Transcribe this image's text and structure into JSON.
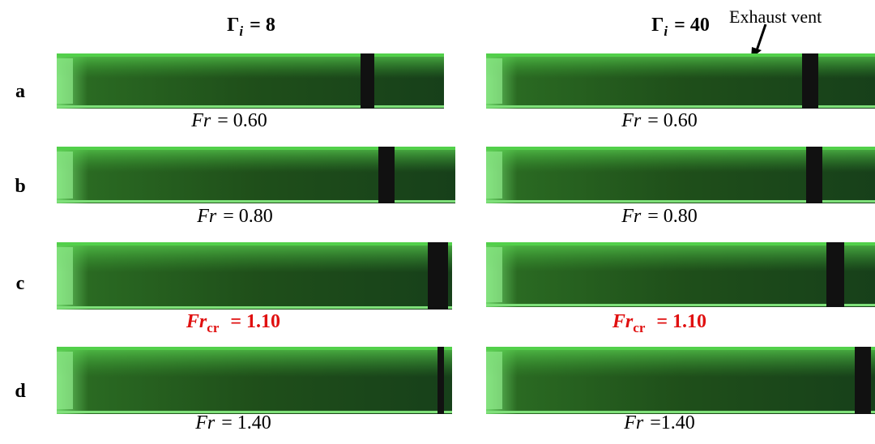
{
  "columns": [
    {
      "symbol": "Γ",
      "subscript": "i",
      "value": "= 8"
    },
    {
      "symbol": "Γ",
      "subscript": "i",
      "value": "= 40"
    }
  ],
  "annotation": "Exhaust vent",
  "rows": [
    {
      "label": "a",
      "captions": [
        {
          "symbol": "Fr",
          "value": "= 0.60"
        },
        {
          "symbol": "Fr",
          "value": "= 0.60"
        }
      ]
    },
    {
      "label": "b",
      "captions": [
        {
          "symbol": "Fr",
          "value": "= 0.80"
        },
        {
          "symbol": "Fr",
          "value": "= 0.80"
        }
      ]
    },
    {
      "label": "c",
      "captions": [
        {
          "symbol": "Fr",
          "subscript": "cr",
          "value": "= 1.10"
        },
        {
          "symbol": "Fr",
          "subscript": "cr",
          "value": "= 1.10"
        }
      ]
    },
    {
      "label": "d",
      "captions": [
        {
          "symbol": "Fr",
          "value": "= 1.40"
        },
        {
          "symbol": "Fr",
          "value": "=1.40"
        }
      ]
    }
  ]
}
